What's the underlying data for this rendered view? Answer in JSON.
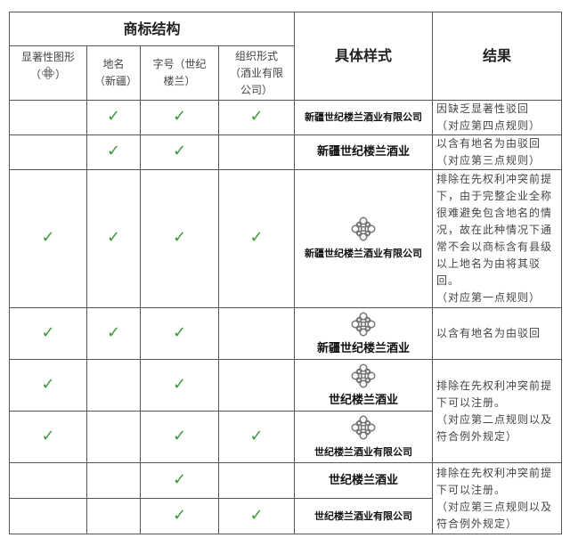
{
  "header": {
    "structure": "商标结构",
    "sample": "具体样式",
    "result": "结果",
    "cols": [
      "显著性图形",
      "地名（新疆）",
      "字号（世纪楼兰）",
      "组织形式（酒业有限公司）"
    ],
    "col0_suffix_open": "（",
    "col0_suffix_close": "）"
  },
  "check_icon": "check-icon",
  "check_color": "#3c9a3c",
  "logo_icon": "snowflake-logo-icon",
  "rows": [
    {
      "checks": [
        false,
        true,
        true,
        true
      ],
      "logo": false,
      "sample": "新疆世纪楼兰酒业有限公司",
      "result": "因缺乏显著性驳回\n（对应第四点规则）"
    },
    {
      "checks": [
        false,
        true,
        true,
        false
      ],
      "logo": false,
      "sample": "新疆世纪楼兰酒业",
      "result": "以含有地名为由驳回\n（对应第三点规则）"
    },
    {
      "checks": [
        true,
        true,
        true,
        true
      ],
      "logo": true,
      "sample": "新疆世纪楼兰酒业有限公司",
      "result": "排除在先权利冲突前提下，由于完整企业全称很难避免包含地名的情况，故在此种情况下通常不会以商标含有县级以上地名为由将其驳回。\n（对应第一点规则）"
    },
    {
      "checks": [
        true,
        true,
        true,
        false
      ],
      "logo": true,
      "sample": "新疆世纪楼兰酒业",
      "result": "以含有地名为由驳回"
    },
    {
      "checks": [
        true,
        false,
        true,
        false
      ],
      "logo": true,
      "sample": "世纪楼兰酒业",
      "result": "排除在先权利冲突前提下可以注册。\n（对应第二点规则以及符合例外规定）"
    },
    {
      "checks": [
        true,
        false,
        true,
        true
      ],
      "logo": true,
      "sample": "世纪楼兰酒业有限公司",
      "result": null
    },
    {
      "checks": [
        false,
        false,
        true,
        false
      ],
      "logo": false,
      "sample": "世纪楼兰酒业",
      "result": "排除在先权利冲突前提下可以注册。\n（对应第三点规则以及符合例外规定）"
    },
    {
      "checks": [
        false,
        false,
        true,
        true
      ],
      "logo": false,
      "sample": "世纪楼兰酒业有限公司",
      "result": null
    }
  ]
}
